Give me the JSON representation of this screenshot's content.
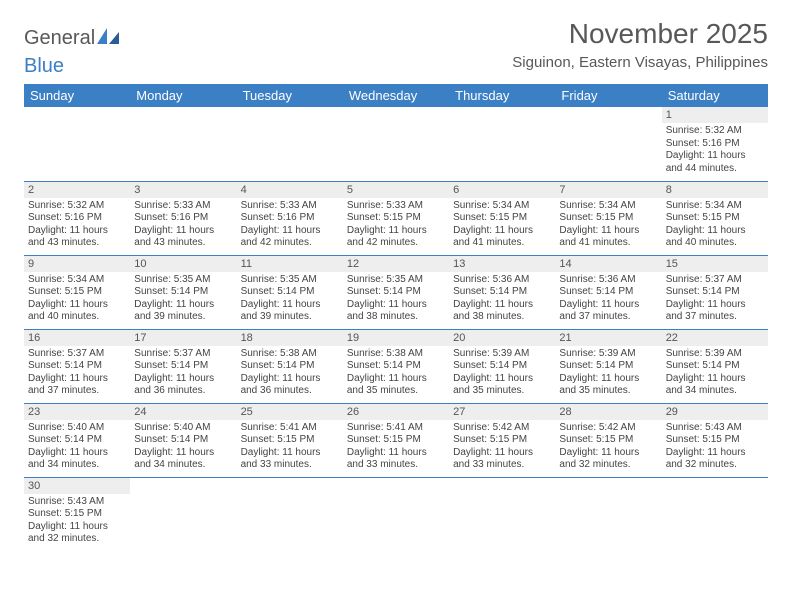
{
  "logo": {
    "word1": "General",
    "word2": "Blue"
  },
  "title": "November 2025",
  "subtitle": "Siguinon, Eastern Visayas, Philippines",
  "colors": {
    "header_bg": "#3b7fc4",
    "header_text": "#ffffff",
    "daynum_bg": "#eeeeee",
    "row_border": "#3b7fc4",
    "body_text": "#444444",
    "title_text": "#56585a"
  },
  "weekdays": [
    "Sunday",
    "Monday",
    "Tuesday",
    "Wednesday",
    "Thursday",
    "Friday",
    "Saturday"
  ],
  "leading_blank": 6,
  "days": [
    {
      "n": 1,
      "sr": "5:32 AM",
      "ss": "5:16 PM",
      "dl": "11 hours and 44 minutes."
    },
    {
      "n": 2,
      "sr": "5:32 AM",
      "ss": "5:16 PM",
      "dl": "11 hours and 43 minutes."
    },
    {
      "n": 3,
      "sr": "5:33 AM",
      "ss": "5:16 PM",
      "dl": "11 hours and 43 minutes."
    },
    {
      "n": 4,
      "sr": "5:33 AM",
      "ss": "5:16 PM",
      "dl": "11 hours and 42 minutes."
    },
    {
      "n": 5,
      "sr": "5:33 AM",
      "ss": "5:15 PM",
      "dl": "11 hours and 42 minutes."
    },
    {
      "n": 6,
      "sr": "5:34 AM",
      "ss": "5:15 PM",
      "dl": "11 hours and 41 minutes."
    },
    {
      "n": 7,
      "sr": "5:34 AM",
      "ss": "5:15 PM",
      "dl": "11 hours and 41 minutes."
    },
    {
      "n": 8,
      "sr": "5:34 AM",
      "ss": "5:15 PM",
      "dl": "11 hours and 40 minutes."
    },
    {
      "n": 9,
      "sr": "5:34 AM",
      "ss": "5:15 PM",
      "dl": "11 hours and 40 minutes."
    },
    {
      "n": 10,
      "sr": "5:35 AM",
      "ss": "5:14 PM",
      "dl": "11 hours and 39 minutes."
    },
    {
      "n": 11,
      "sr": "5:35 AM",
      "ss": "5:14 PM",
      "dl": "11 hours and 39 minutes."
    },
    {
      "n": 12,
      "sr": "5:35 AM",
      "ss": "5:14 PM",
      "dl": "11 hours and 38 minutes."
    },
    {
      "n": 13,
      "sr": "5:36 AM",
      "ss": "5:14 PM",
      "dl": "11 hours and 38 minutes."
    },
    {
      "n": 14,
      "sr": "5:36 AM",
      "ss": "5:14 PM",
      "dl": "11 hours and 37 minutes."
    },
    {
      "n": 15,
      "sr": "5:37 AM",
      "ss": "5:14 PM",
      "dl": "11 hours and 37 minutes."
    },
    {
      "n": 16,
      "sr": "5:37 AM",
      "ss": "5:14 PM",
      "dl": "11 hours and 37 minutes."
    },
    {
      "n": 17,
      "sr": "5:37 AM",
      "ss": "5:14 PM",
      "dl": "11 hours and 36 minutes."
    },
    {
      "n": 18,
      "sr": "5:38 AM",
      "ss": "5:14 PM",
      "dl": "11 hours and 36 minutes."
    },
    {
      "n": 19,
      "sr": "5:38 AM",
      "ss": "5:14 PM",
      "dl": "11 hours and 35 minutes."
    },
    {
      "n": 20,
      "sr": "5:39 AM",
      "ss": "5:14 PM",
      "dl": "11 hours and 35 minutes."
    },
    {
      "n": 21,
      "sr": "5:39 AM",
      "ss": "5:14 PM",
      "dl": "11 hours and 35 minutes."
    },
    {
      "n": 22,
      "sr": "5:39 AM",
      "ss": "5:14 PM",
      "dl": "11 hours and 34 minutes."
    },
    {
      "n": 23,
      "sr": "5:40 AM",
      "ss": "5:14 PM",
      "dl": "11 hours and 34 minutes."
    },
    {
      "n": 24,
      "sr": "5:40 AM",
      "ss": "5:14 PM",
      "dl": "11 hours and 34 minutes."
    },
    {
      "n": 25,
      "sr": "5:41 AM",
      "ss": "5:15 PM",
      "dl": "11 hours and 33 minutes."
    },
    {
      "n": 26,
      "sr": "5:41 AM",
      "ss": "5:15 PM",
      "dl": "11 hours and 33 minutes."
    },
    {
      "n": 27,
      "sr": "5:42 AM",
      "ss": "5:15 PM",
      "dl": "11 hours and 33 minutes."
    },
    {
      "n": 28,
      "sr": "5:42 AM",
      "ss": "5:15 PM",
      "dl": "11 hours and 32 minutes."
    },
    {
      "n": 29,
      "sr": "5:43 AM",
      "ss": "5:15 PM",
      "dl": "11 hours and 32 minutes."
    },
    {
      "n": 30,
      "sr": "5:43 AM",
      "ss": "5:15 PM",
      "dl": "11 hours and 32 minutes."
    }
  ],
  "labels": {
    "sunrise": "Sunrise:",
    "sunset": "Sunset:",
    "daylight": "Daylight:"
  }
}
